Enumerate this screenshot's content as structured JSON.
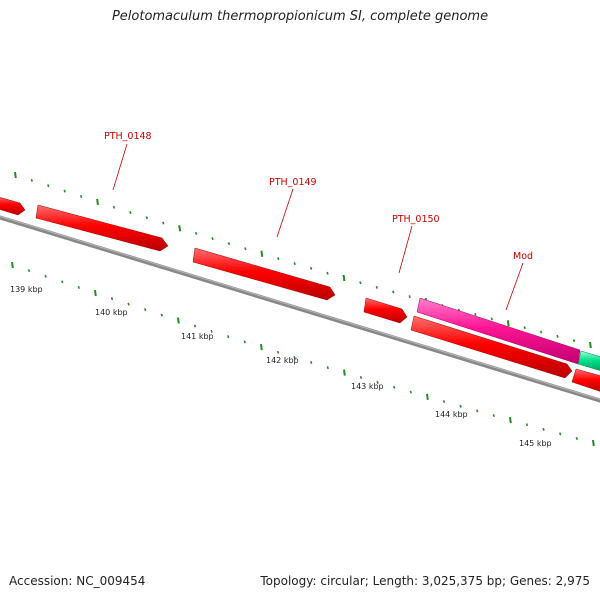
{
  "title": "Pelotomaculum thermopropionicum SI, complete genome",
  "footer": {
    "accession": "Accession: NC_009454",
    "summary": "Topology: circular; Length: 3,025,375 bp; Genes: 2,975"
  },
  "colors": {
    "gene_red": "#ff0000",
    "gene_magenta": "#ff1493",
    "gene_green": "#00e08a",
    "label_red": "#cc0000",
    "tick_green": "#228b22",
    "backbone": "#888888"
  },
  "genes": [
    {
      "label": "",
      "color": "red",
      "strand": "+"
    },
    {
      "label": "PTH_0148",
      "color": "red",
      "strand": "+"
    },
    {
      "label": "PTH_0149",
      "color": "red",
      "strand": "+"
    },
    {
      "label": "PTH_0150",
      "color": "red",
      "strand": "+"
    },
    {
      "label": "Mod",
      "color": "magenta",
      "strand": "+"
    },
    {
      "label": "",
      "color": "green",
      "strand": "+"
    },
    {
      "label": "",
      "color": "red",
      "strand": "+"
    },
    {
      "label": "",
      "color": "red",
      "strand": "+"
    }
  ],
  "kbp_labels": [
    "139 kbp",
    "140 kbp",
    "141 kbp",
    "142 kbp",
    "143 kbp",
    "144 kbp",
    "145 kbp"
  ]
}
